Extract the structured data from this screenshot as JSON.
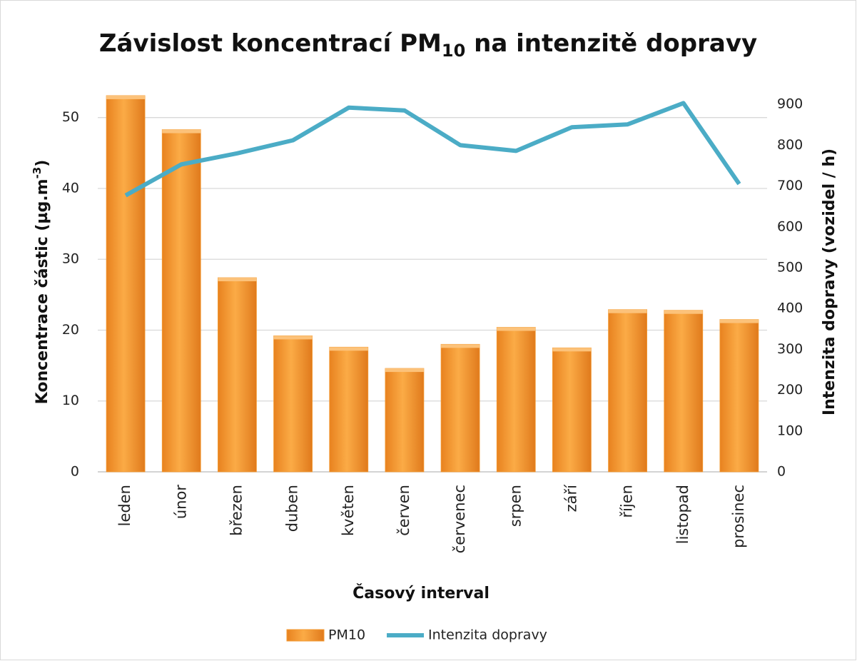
{
  "chart_data": {
    "type": "bar_line",
    "title": [
      "Závislost koncentrací PM",
      "10",
      " na intenzitě dopravy"
    ],
    "x_label": "Časový interval",
    "y_label": [
      "Koncentrace částic  (µg.m",
      "-3",
      ")"
    ],
    "y2_label": "Intenzita dopravy (vozidel / h)",
    "categories": [
      "leden",
      "únor",
      "březen",
      "duben",
      "květen",
      "červen",
      "červenec",
      "srpen",
      "září",
      "říjen",
      "listopad",
      "prosinec"
    ],
    "series": [
      {
        "name": "PM10",
        "type": "bar",
        "color": "#f39a32",
        "values": [
          53.1,
          48.3,
          27.4,
          19.2,
          17.6,
          14.6,
          18.0,
          20.4,
          17.5,
          22.9,
          22.8,
          21.5
        ]
      },
      {
        "name": "Intenzita dopravy",
        "type": "line",
        "axis": "y2",
        "color": "#4bacc6",
        "values": [
          677,
          753,
          780,
          812,
          892,
          885,
          800,
          786,
          844,
          851,
          903,
          705
        ]
      }
    ],
    "ylim": [
      0,
      54
    ],
    "yticks": [
      0,
      10,
      20,
      30,
      40,
      50
    ],
    "y2lim": [
      0,
      937
    ],
    "y2ticks": [
      0,
      100,
      200,
      300,
      400,
      500,
      600,
      700,
      800,
      900
    ],
    "grid": true,
    "legend": "bottom"
  }
}
